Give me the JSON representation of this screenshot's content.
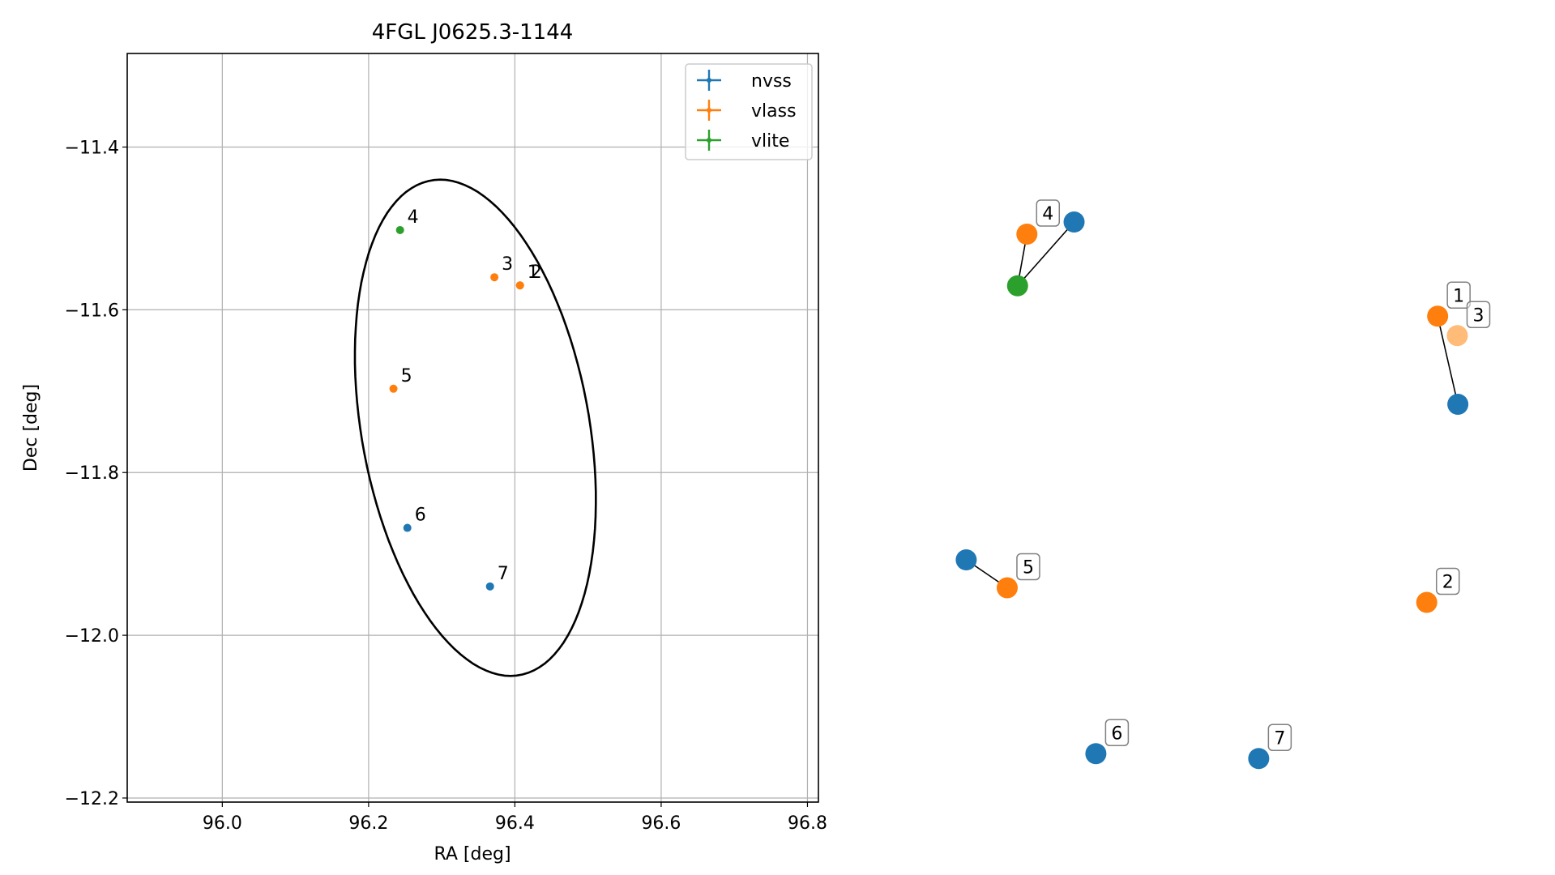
{
  "chart_data": [
    {
      "type": "scatter",
      "title": "4FGL J0625.3-1144",
      "xlabel": "RA [deg]",
      "ylabel": "Dec [deg]",
      "xlim": [
        95.87,
        96.815
      ],
      "ylim": [
        -12.205,
        -11.285
      ],
      "xticks": [
        96.0,
        96.2,
        96.4,
        96.6,
        96.8
      ],
      "xtick_labels": [
        "96.0",
        "96.2",
        "96.4",
        "96.6",
        "96.8"
      ],
      "yticks": [
        -11.4,
        -11.6,
        -11.8,
        -12.0,
        -12.2
      ],
      "ytick_labels": [
        "−11.4",
        "−11.6",
        "−11.8",
        "−12.0",
        "−12.2"
      ],
      "grid": true,
      "legend_position": "top-right",
      "series": [
        {
          "name": "nvss",
          "color": "#1f77b4",
          "points": [
            {
              "label": "6",
              "x": 96.253,
              "y": -11.868
            },
            {
              "label": "7",
              "x": 96.366,
              "y": -11.94
            }
          ]
        },
        {
          "name": "vlass",
          "color": "#ff7f0e",
          "points": [
            {
              "label": "3",
              "x": 96.372,
              "y": -11.56
            },
            {
              "label": "1",
              "x": 96.407,
              "y": -11.57
            },
            {
              "label": "2",
              "x": 96.407,
              "y": -11.57
            },
            {
              "label": "5",
              "x": 96.234,
              "y": -11.697
            }
          ]
        },
        {
          "name": "vlite",
          "color": "#2ca02c",
          "points": [
            {
              "label": "4",
              "x": 96.243,
              "y": -11.502
            }
          ]
        }
      ],
      "ellipse": {
        "color": "#000000",
        "center": [
          96.346,
          -11.745
        ],
        "semi_axes": [
          0.155,
          0.31
        ],
        "angle_deg": 12
      }
    },
    {
      "type": "scatter",
      "title": "",
      "axes_visible": false,
      "xlim": [
        0,
        1
      ],
      "ylim": [
        0,
        1
      ],
      "nodes": [
        {
          "id": "n4",
          "series": "nvss",
          "color": "#1f77b4",
          "x": 0.243,
          "y": 0.9
        },
        {
          "id": "v4",
          "series": "vlass",
          "color": "#ff7f0e",
          "x": 0.152,
          "y": 0.88,
          "label": "4"
        },
        {
          "id": "l4",
          "series": "vlite",
          "color": "#2ca02c",
          "x": 0.134,
          "y": 0.795
        },
        {
          "id": "v1",
          "series": "vlass",
          "color": "#ff7f0e",
          "x": 0.944,
          "y": 0.745,
          "label": "1"
        },
        {
          "id": "v3",
          "series": "vlass",
          "color": "#ffbb78",
          "x": 0.982,
          "y": 0.713,
          "label": "3"
        },
        {
          "id": "n1",
          "series": "nvss",
          "color": "#1f77b4",
          "x": 0.983,
          "y": 0.6
        },
        {
          "id": "n5",
          "series": "nvss",
          "color": "#1f77b4",
          "x": 0.035,
          "y": 0.344
        },
        {
          "id": "v5",
          "series": "vlass",
          "color": "#ff7f0e",
          "x": 0.114,
          "y": 0.298,
          "label": "5"
        },
        {
          "id": "v2",
          "series": "vlass",
          "color": "#ff7f0e",
          "x": 0.923,
          "y": 0.274,
          "label": "2"
        },
        {
          "id": "n6",
          "series": "nvss",
          "color": "#1f77b4",
          "x": 0.285,
          "y": 0.025,
          "label": "6"
        },
        {
          "id": "n7",
          "series": "nvss",
          "color": "#1f77b4",
          "x": 0.599,
          "y": 0.017,
          "label": "7"
        }
      ],
      "edges": [
        [
          "v4",
          "l4"
        ],
        [
          "l4",
          "n4"
        ],
        [
          "v1",
          "n1"
        ],
        [
          "n5",
          "v5"
        ]
      ]
    }
  ]
}
